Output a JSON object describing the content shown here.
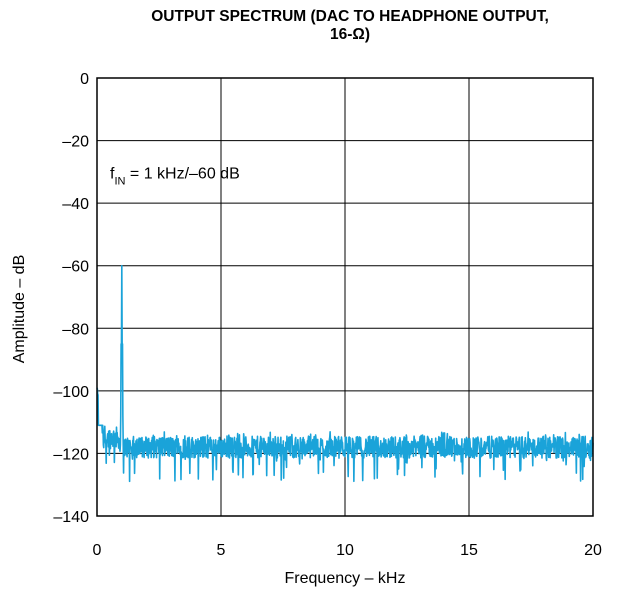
{
  "chart_data": {
    "type": "line",
    "title_line1": "OUTPUT SPECTRUM (DAC TO HEADPHONE OUTPUT,",
    "title_line2": "16-Ω)",
    "xlabel": "Frequency – kHz",
    "ylabel": "Amplitude – dB",
    "xlim": [
      0,
      20
    ],
    "ylim": [
      -140,
      0
    ],
    "x_ticks": [
      0,
      5,
      10,
      15,
      20
    ],
    "x_tick_labels": [
      "0",
      "5",
      "10",
      "15",
      "20"
    ],
    "y_ticks": [
      0,
      -20,
      -40,
      -60,
      -80,
      -100,
      -120,
      -140
    ],
    "y_tick_labels": [
      "0",
      "–20",
      "–40",
      "–60",
      "–80",
      "–100",
      "–120",
      "–140"
    ],
    "grid": true,
    "annotation": {
      "f": "f",
      "sub": "IN",
      "rest": " = 1 kHz/–60 dB"
    },
    "series": [
      {
        "color": "#1aa3d9",
        "noise_floor_db": -118,
        "noise_floor_min_db": -130,
        "noise_floor_max_db": -113,
        "dc_start_db": -102,
        "peak": {
          "x": 1,
          "y": -60
        }
      }
    ]
  }
}
